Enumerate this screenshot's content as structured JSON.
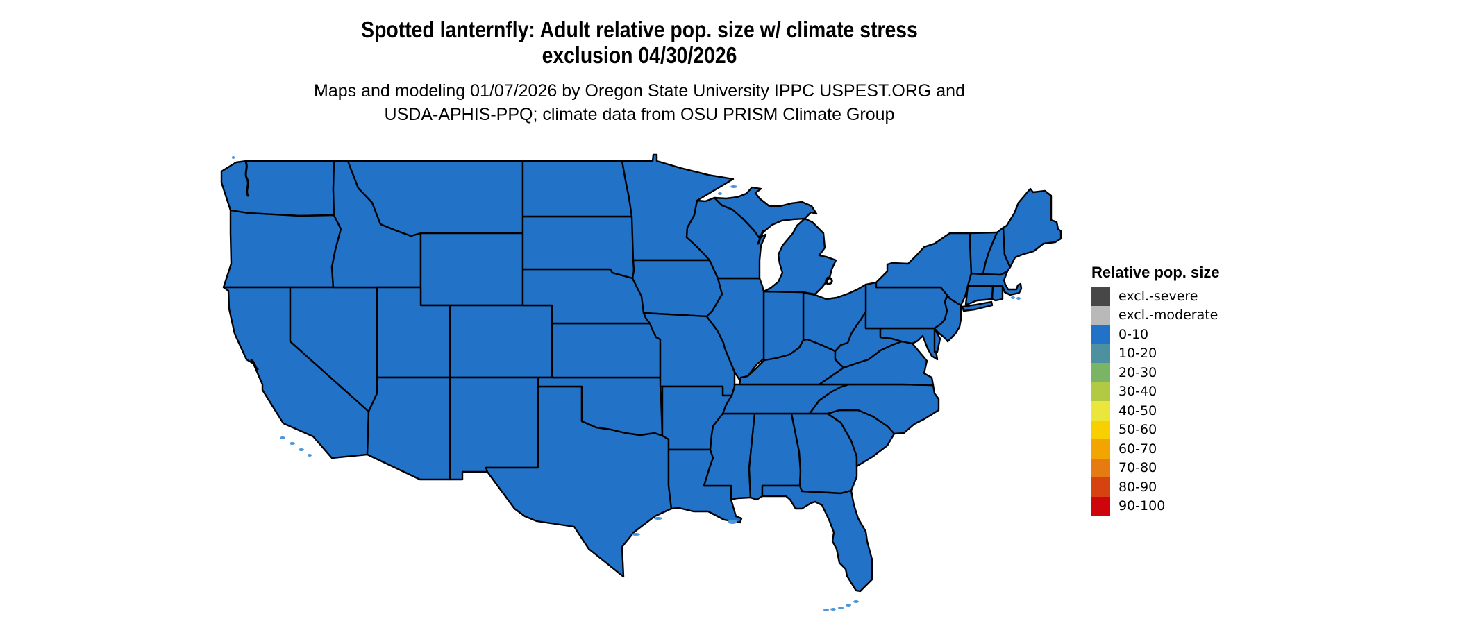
{
  "title": {
    "line1": "Spotted lanternfly: Adult relative pop. size w/ climate stress",
    "line2": "exclusion 04/30/2026"
  },
  "subtitle": {
    "line1": "Maps and modeling 01/07/2026 by Oregon State University IPPC USPEST.ORG and",
    "line2": "USDA-APHIS-PPQ; climate data from OSU PRISM Climate Group"
  },
  "legend": {
    "title": "Relative pop. size",
    "items": [
      {
        "label": "excl.-severe",
        "color": "#474747"
      },
      {
        "label": "excl.-moderate",
        "color": "#b9b9b9"
      },
      {
        "label": "0-10",
        "color": "#2273c8"
      },
      {
        "label": "10-20",
        "color": "#4d90a0"
      },
      {
        "label": "20-30",
        "color": "#7ab465"
      },
      {
        "label": "30-40",
        "color": "#b2c944"
      },
      {
        "label": "40-50",
        "color": "#ebe63c"
      },
      {
        "label": "50-60",
        "color": "#f8d000"
      },
      {
        "label": "60-70",
        "color": "#f2a500"
      },
      {
        "label": "70-80",
        "color": "#e67b12"
      },
      {
        "label": "80-90",
        "color": "#d64310"
      },
      {
        "label": "90-100",
        "color": "#ce050c"
      }
    ]
  },
  "map": {
    "region": "Contiguous United States",
    "fill_class": "0-10",
    "fill_color": "#2273c8",
    "border_color": "#000000",
    "island_color": "#4f97d8",
    "background": "#ffffff"
  },
  "chart_data": {
    "type": "choropleth_map",
    "variable": "Relative pop. size",
    "map_date": "04/30/2026",
    "model_date": "01/07/2026",
    "classes": [
      "excl.-severe",
      "excl.-moderate",
      "0-10",
      "10-20",
      "20-30",
      "30-40",
      "40-50",
      "50-60",
      "60-70",
      "70-80",
      "80-90",
      "90-100"
    ],
    "value_for_all_states": "0-10",
    "states": [
      "washington",
      "oregon",
      "california",
      "nevada",
      "idaho",
      "montana",
      "wyoming",
      "utah",
      "colorado",
      "arizona",
      "new-mexico",
      "texas",
      "oklahoma",
      "kansas",
      "nebraska",
      "south-dakota",
      "north-dakota",
      "minnesota",
      "iowa",
      "missouri",
      "arkansas",
      "louisiana",
      "mississippi",
      "alabama",
      "georgia",
      "florida",
      "south-carolina",
      "north-carolina",
      "tennessee",
      "kentucky",
      "virginia",
      "west-virginia",
      "maryland",
      "delaware",
      "pennsylvania",
      "new-jersey",
      "new-york",
      "connecticut",
      "rhode-island",
      "massachusetts",
      "vermont",
      "new-hampshire",
      "maine",
      "ohio",
      "indiana",
      "illinois",
      "wisconsin",
      "michigan"
    ]
  }
}
